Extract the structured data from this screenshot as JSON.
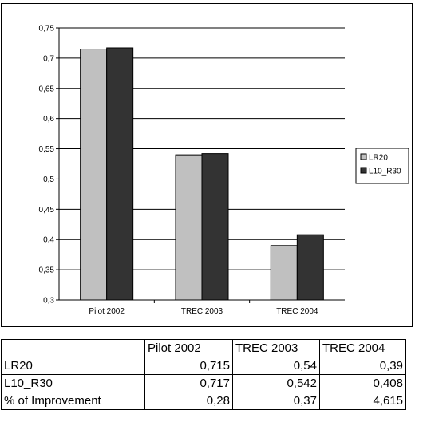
{
  "chart_data": {
    "type": "bar",
    "categories": [
      "Pilot 2002",
      "TREC 2003",
      "TREC 2004"
    ],
    "series": [
      {
        "name": "LR20",
        "values": [
          0.715,
          0.54,
          0.39
        ],
        "color": "#c0c0c0"
      },
      {
        "name": "L10_R30",
        "values": [
          0.717,
          0.542,
          0.408
        ],
        "color": "#333333"
      }
    ],
    "ylim": [
      0.3,
      0.75
    ],
    "yticks": [
      "0,3",
      "0,35",
      "0,4",
      "0,45",
      "0,5",
      "0,55",
      "0,6",
      "0,65",
      "0,7",
      "0,75"
    ],
    "grid": true,
    "legend_position": "right",
    "title": "",
    "xlabel": "",
    "ylabel": ""
  },
  "table": {
    "header": [
      "",
      "Pilot 2002",
      "TREC 2003",
      "TREC 2004"
    ],
    "rows": [
      [
        "LR20",
        "0,715",
        "0,54",
        "0,39"
      ],
      [
        "L10_R30",
        "0,717",
        "0,542",
        "0,408"
      ],
      [
        "% of Improvement",
        "0,28",
        "0,37",
        "4,615"
      ]
    ]
  }
}
